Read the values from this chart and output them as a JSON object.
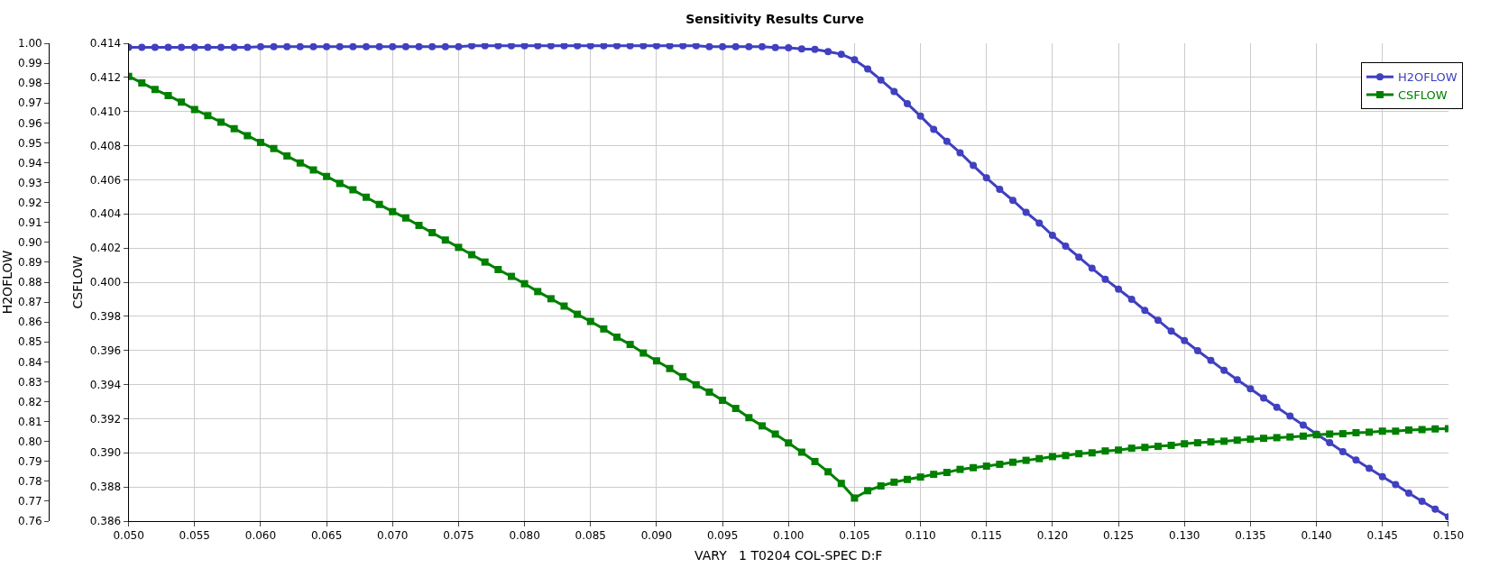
{
  "chart_data": {
    "type": "line",
    "title": "Sensitivity Results Curve",
    "xlabel": "VARY   1 T0204 COL-SPEC D:F",
    "ylabel": "H2OFLOW",
    "y2label": "CSFLOW",
    "x": [
      0.05,
      0.051,
      0.052,
      0.053,
      0.054,
      0.055,
      0.056,
      0.057,
      0.058,
      0.059,
      0.06,
      0.061,
      0.062,
      0.063,
      0.064,
      0.065,
      0.066,
      0.067,
      0.068,
      0.069,
      0.07,
      0.071,
      0.072,
      0.073,
      0.074,
      0.075,
      0.076,
      0.077,
      0.078,
      0.079,
      0.08,
      0.081,
      0.082,
      0.083,
      0.084,
      0.085,
      0.086,
      0.087,
      0.088,
      0.089,
      0.09,
      0.091,
      0.092,
      0.093,
      0.094,
      0.095,
      0.096,
      0.097,
      0.098,
      0.099,
      0.1,
      0.101,
      0.102,
      0.103,
      0.104,
      0.105,
      0.106,
      0.107,
      0.108,
      0.109,
      0.11,
      0.111,
      0.112,
      0.113,
      0.114,
      0.115,
      0.116,
      0.117,
      0.118,
      0.119,
      0.12,
      0.121,
      0.122,
      0.123,
      0.124,
      0.125,
      0.126,
      0.127,
      0.128,
      0.129,
      0.13,
      0.131,
      0.132,
      0.133,
      0.134,
      0.135,
      0.136,
      0.137,
      0.138,
      0.139,
      0.14,
      0.141,
      0.142,
      0.143,
      0.144,
      0.145,
      0.146,
      0.147,
      0.148,
      0.149,
      0.15
    ],
    "series": [
      {
        "name": "H2OFLOW",
        "color": "#4040c0",
        "marker": "circle",
        "values": [
          0.998,
          0.998,
          0.998,
          0.998,
          0.998,
          0.998,
          0.998,
          0.998,
          0.998,
          0.998,
          0.9983,
          0.9983,
          0.9983,
          0.9983,
          0.9983,
          0.9983,
          0.9983,
          0.9983,
          0.9983,
          0.9983,
          0.9983,
          0.9983,
          0.9983,
          0.9983,
          0.9983,
          0.9983,
          0.9988,
          0.9988,
          0.9988,
          0.9988,
          0.9988,
          0.9988,
          0.9988,
          0.9988,
          0.9988,
          0.9988,
          0.9988,
          0.9988,
          0.9988,
          0.9988,
          0.9988,
          0.9988,
          0.9988,
          0.9988,
          0.9983,
          0.9983,
          0.9983,
          0.9983,
          0.9983,
          0.9978,
          0.9977,
          0.9972,
          0.9969,
          0.9958,
          0.9945,
          0.9917,
          0.9871,
          0.9816,
          0.9758,
          0.9697,
          0.9634,
          0.9568,
          0.9508,
          0.945,
          0.9386,
          0.9324,
          0.9266,
          0.9211,
          0.9151,
          0.9097,
          0.9035,
          0.8981,
          0.8926,
          0.887,
          0.8815,
          0.8765,
          0.8714,
          0.8658,
          0.8609,
          0.8554,
          0.8507,
          0.8456,
          0.8407,
          0.8357,
          0.831,
          0.8265,
          0.8218,
          0.8172,
          0.8127,
          0.8082,
          0.8037,
          0.7994,
          0.7949,
          0.7907,
          0.7865,
          0.7823,
          0.7783,
          0.774,
          0.77,
          0.766,
          0.7621
        ]
      },
      {
        "name": "CSFLOW",
        "color": "#008000",
        "marker": "square",
        "axis": "y2",
        "values": [
          0.41206,
          0.41168,
          0.41129,
          0.41094,
          0.41055,
          0.41012,
          0.40976,
          0.40938,
          0.409,
          0.40859,
          0.40819,
          0.40783,
          0.40739,
          0.40699,
          0.40658,
          0.4062,
          0.40579,
          0.40541,
          0.40498,
          0.40455,
          0.40414,
          0.40376,
          0.40333,
          0.4029,
          0.40247,
          0.40204,
          0.40161,
          0.40118,
          0.40074,
          0.40034,
          0.39991,
          0.39945,
          0.39903,
          0.3986,
          0.39812,
          0.3977,
          0.39726,
          0.39678,
          0.39635,
          0.39585,
          0.39539,
          0.39494,
          0.39446,
          0.39399,
          0.39356,
          0.39308,
          0.3926,
          0.39206,
          0.39158,
          0.3911,
          0.39058,
          0.39004,
          0.38949,
          0.38889,
          0.38821,
          0.38735,
          0.38778,
          0.38806,
          0.38828,
          0.38844,
          0.38858,
          0.38874,
          0.38885,
          0.38903,
          0.38913,
          0.38922,
          0.38933,
          0.38945,
          0.38956,
          0.38966,
          0.38978,
          0.38984,
          0.38995,
          0.39,
          0.39011,
          0.39016,
          0.39027,
          0.39032,
          0.39038,
          0.39044,
          0.39053,
          0.39059,
          0.39064,
          0.39068,
          0.39074,
          0.3908,
          0.39085,
          0.39089,
          0.39093,
          0.39098,
          0.39106,
          0.3911,
          0.39112,
          0.39118,
          0.39121,
          0.39127,
          0.39127,
          0.39133,
          0.39136,
          0.3914,
          0.39142
        ]
      }
    ],
    "xlim": [
      0.05,
      0.15
    ],
    "xticks": [
      {
        "value": 0.05,
        "label": "0.050"
      },
      {
        "value": 0.055,
        "label": "0.055"
      },
      {
        "value": 0.06,
        "label": "0.060"
      },
      {
        "value": 0.065,
        "label": "0.065"
      },
      {
        "value": 0.07,
        "label": "0.070"
      },
      {
        "value": 0.075,
        "label": "0.075"
      },
      {
        "value": 0.08,
        "label": "0.080"
      },
      {
        "value": 0.085,
        "label": "0.085"
      },
      {
        "value": 0.09,
        "label": "0.090"
      },
      {
        "value": 0.095,
        "label": "0.095"
      },
      {
        "value": 0.1,
        "label": "0.100"
      },
      {
        "value": 0.105,
        "label": "0.105"
      },
      {
        "value": 0.11,
        "label": "0.110"
      },
      {
        "value": 0.115,
        "label": "0.115"
      },
      {
        "value": 0.12,
        "label": "0.120"
      },
      {
        "value": 0.125,
        "label": "0.125"
      },
      {
        "value": 0.13,
        "label": "0.130"
      },
      {
        "value": 0.135,
        "label": "0.135"
      },
      {
        "value": 0.14,
        "label": "0.140"
      },
      {
        "value": 0.145,
        "label": "0.145"
      },
      {
        "value": 0.15,
        "label": "0.150"
      }
    ],
    "ylim": [
      0.76,
      1.0
    ],
    "yticks": [
      {
        "value": 0.76,
        "label": "0.76"
      },
      {
        "value": 0.77,
        "label": "0.77"
      },
      {
        "value": 0.78,
        "label": "0.78"
      },
      {
        "value": 0.79,
        "label": "0.79"
      },
      {
        "value": 0.8,
        "label": "0.80"
      },
      {
        "value": 0.81,
        "label": "0.81"
      },
      {
        "value": 0.82,
        "label": "0.82"
      },
      {
        "value": 0.83,
        "label": "0.83"
      },
      {
        "value": 0.84,
        "label": "0.84"
      },
      {
        "value": 0.85,
        "label": "0.85"
      },
      {
        "value": 0.86,
        "label": "0.86"
      },
      {
        "value": 0.87,
        "label": "0.87"
      },
      {
        "value": 0.88,
        "label": "0.88"
      },
      {
        "value": 0.89,
        "label": "0.89"
      },
      {
        "value": 0.9,
        "label": "0.90"
      },
      {
        "value": 0.91,
        "label": "0.91"
      },
      {
        "value": 0.92,
        "label": "0.92"
      },
      {
        "value": 0.93,
        "label": "0.93"
      },
      {
        "value": 0.94,
        "label": "0.94"
      },
      {
        "value": 0.95,
        "label": "0.95"
      },
      {
        "value": 0.96,
        "label": "0.96"
      },
      {
        "value": 0.97,
        "label": "0.97"
      },
      {
        "value": 0.98,
        "label": "0.98"
      },
      {
        "value": 0.99,
        "label": "0.99"
      },
      {
        "value": 1.0,
        "label": "1.00"
      }
    ],
    "y2lim": [
      0.386,
      0.414
    ],
    "y2ticks": [
      0.386,
      0.388,
      {
        "value": 0.39,
        "label": "0.390"
      },
      0.392,
      0.394,
      0.396,
      0.398,
      {
        "value": 0.4,
        "label": "0.400"
      },
      0.402,
      0.404,
      0.406,
      0.408,
      {
        "value": 0.41,
        "label": "0.410"
      },
      0.412,
      0.414
    ],
    "grid": true,
    "legend": "top right",
    "line_style": "solid"
  }
}
